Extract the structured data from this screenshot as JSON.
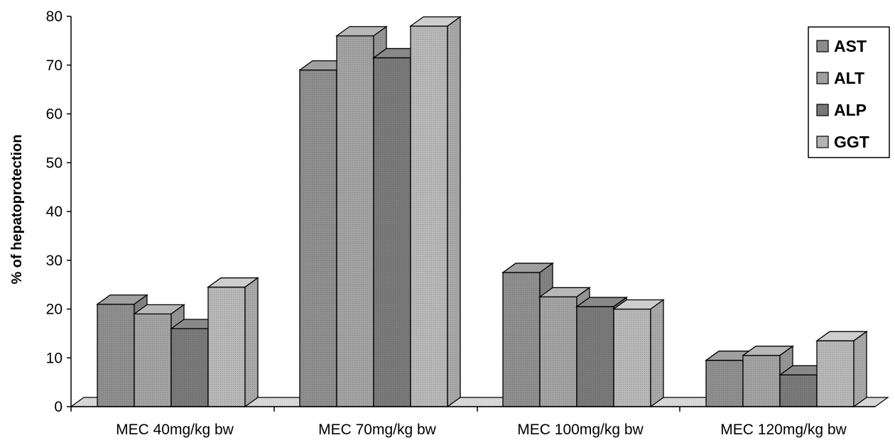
{
  "chart_data": {
    "type": "bar",
    "title": "",
    "xlabel": "",
    "ylabel": "% of hepatoprotection",
    "ylim": [
      0,
      80
    ],
    "yticks": [
      0,
      10,
      20,
      30,
      40,
      50,
      60,
      70,
      80
    ],
    "categories": [
      "MEC 40mg/kg bw",
      "MEC 70mg/kg bw",
      "MEC 100mg/kg bw",
      "MEC 120mg/kg bw"
    ],
    "series": [
      {
        "name": "AST",
        "values": [
          21,
          69,
          27.5,
          9.5
        ],
        "color": "#8f8f8f"
      },
      {
        "name": "ALT",
        "values": [
          19,
          76,
          22.5,
          10.5
        ],
        "color": "#a3a3a3"
      },
      {
        "name": "ALP",
        "values": [
          16,
          71.5,
          20.5,
          6.5
        ],
        "color": "#7a7a7a"
      },
      {
        "name": "GGT",
        "values": [
          24.5,
          78,
          20,
          13.5
        ],
        "color": "#b8b8b8"
      }
    ],
    "legend_position": "top-right",
    "grid": false,
    "style": "3d"
  }
}
